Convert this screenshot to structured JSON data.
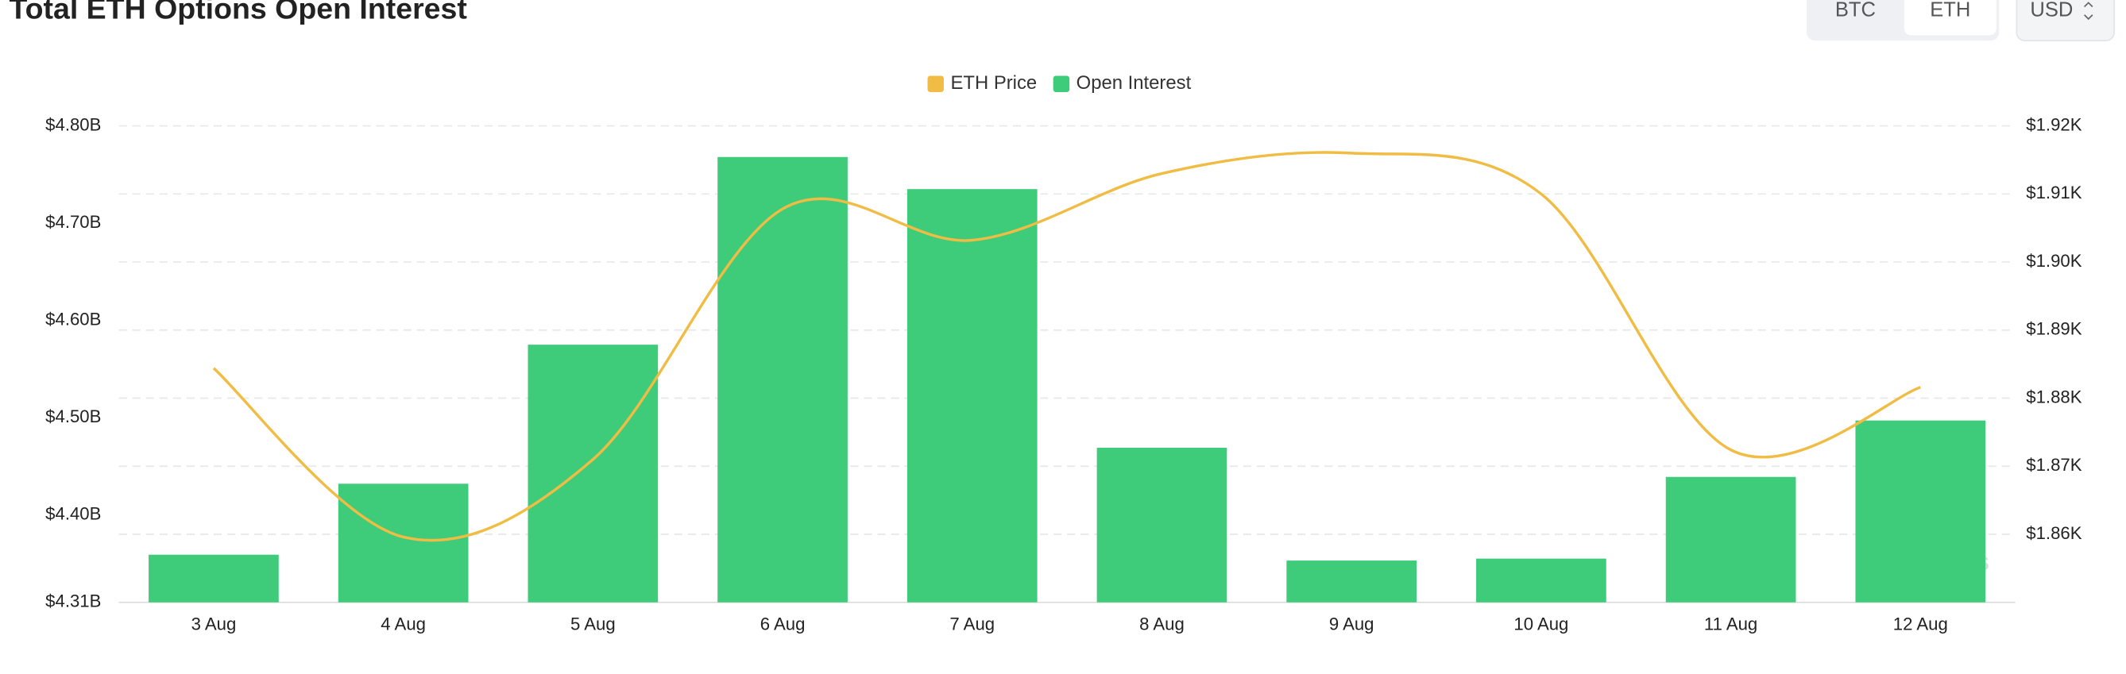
{
  "chart_data": {
    "type": "bar-line",
    "title": "Total ETH Options Open Interest",
    "controls": {
      "coins": [
        "BTC",
        "ETH"
      ],
      "currency": "USD"
    },
    "watermark": "coinglass",
    "categories": [
      "3 Aug",
      "4 Aug",
      "5 Aug",
      "6 Aug",
      "7 Aug",
      "8 Aug",
      "9 Aug",
      "10 Aug",
      "11 Aug",
      "12 Aug"
    ],
    "series": [
      {
        "name": "ETH Price",
        "color": "#f0bc44",
        "axis": "y2",
        "kind": "line",
        "values": [
          1.8844,
          1.8596,
          1.871,
          1.9078,
          1.9032,
          1.913,
          1.916,
          1.91,
          1.8724,
          1.8816
        ]
      },
      {
        "name": "Open Interest",
        "color": "#3ecc7a",
        "axis": "y",
        "kind": "bar",
        "values": [
          4.359,
          4.432,
          4.575,
          4.768,
          4.735,
          4.469,
          4.353,
          4.355,
          4.439,
          4.497
        ]
      }
    ],
    "ylim": [
      4.31,
      4.8
    ],
    "yticks": [
      {
        "value": 4.31,
        "label": "$4.31B"
      },
      {
        "value": 4.4,
        "label": "$4.40B"
      },
      {
        "value": 4.5,
        "label": "$4.50B"
      },
      {
        "value": 4.6,
        "label": "$4.60B"
      },
      {
        "value": 4.7,
        "label": "$4.70B"
      },
      {
        "value": 4.8,
        "label": "$4.80B"
      }
    ],
    "y2lim": [
      1.85,
      1.92
    ],
    "y2ticks": [
      {
        "value": 1.86,
        "label": "$1.86K"
      },
      {
        "value": 1.87,
        "label": "$1.87K"
      },
      {
        "value": 1.88,
        "label": "$1.88K"
      },
      {
        "value": 1.89,
        "label": "$1.89K"
      },
      {
        "value": 1.9,
        "label": "$1.90K"
      },
      {
        "value": 1.91,
        "label": "$1.91K"
      },
      {
        "value": 1.92,
        "label": "$1.92K"
      }
    ],
    "grid": true
  }
}
